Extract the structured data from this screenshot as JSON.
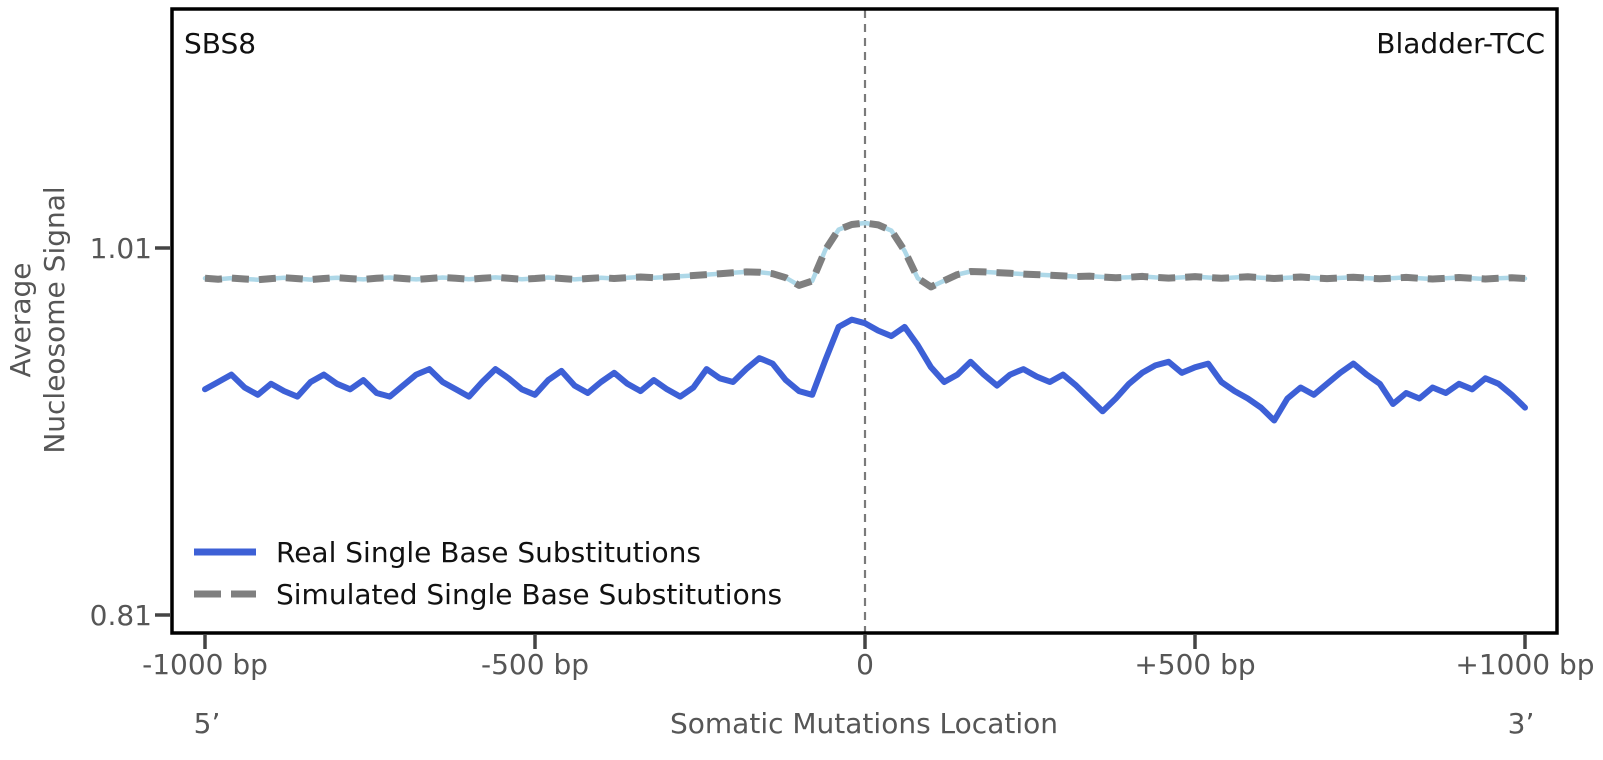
{
  "figure": {
    "kind": "nucleosome-occupancy-plot"
  },
  "chart_data": {
    "type": "line",
    "title": "SBS8",
    "right_label": "Bladder-TCC",
    "xlabel": "Somatic Mutations Location",
    "ylabel": "Average Nucleosome Signal",
    "ylabel_lines": [
      "Average",
      "Nucleosome Signal"
    ],
    "end_labels": {
      "left": "5’",
      "right": "3’"
    },
    "x_unit": "bp",
    "xticks": [
      -1000,
      -500,
      0,
      500,
      1000
    ],
    "xtick_labels": [
      "-1000 bp",
      "-500 bp",
      "0",
      "+500 bp",
      "+1000 bp"
    ],
    "yticks": [
      1.01,
      0.81
    ],
    "ytick_labels": [
      "1.01",
      "0.81"
    ],
    "xlim": [
      -1050,
      1050
    ],
    "ylim": [
      0.8,
      1.14
    ],
    "grid": false,
    "legend_position": "lower-left-inside",
    "vline_x": 0,
    "x_start": -1000,
    "x_step": 20,
    "series": [
      {
        "name": "Real Single Base Substitutions",
        "style": "solid",
        "color": "#3d60d6",
        "values": [
          0.933,
          0.937,
          0.941,
          0.934,
          0.93,
          0.936,
          0.932,
          0.929,
          0.937,
          0.941,
          0.936,
          0.933,
          0.938,
          0.931,
          0.929,
          0.935,
          0.941,
          0.944,
          0.937,
          0.933,
          0.929,
          0.937,
          0.944,
          0.939,
          0.933,
          0.93,
          0.938,
          0.943,
          0.935,
          0.931,
          0.937,
          0.942,
          0.936,
          0.932,
          0.938,
          0.933,
          0.929,
          0.934,
          0.944,
          0.939,
          0.937,
          0.944,
          0.95,
          0.947,
          0.938,
          0.932,
          0.93,
          0.949,
          0.967,
          0.971,
          0.969,
          0.965,
          0.962,
          0.967,
          0.957,
          0.945,
          0.937,
          0.941,
          0.948,
          0.941,
          0.935,
          0.941,
          0.944,
          0.94,
          0.937,
          0.941,
          0.935,
          0.928,
          0.921,
          0.928,
          0.936,
          0.942,
          0.946,
          0.948,
          0.942,
          0.945,
          0.947,
          0.937,
          0.932,
          0.928,
          0.923,
          0.916,
          0.928,
          0.934,
          0.93,
          0.936,
          0.942,
          0.947,
          0.941,
          0.936,
          0.925,
          0.931,
          0.928,
          0.934,
          0.931,
          0.936,
          0.933,
          0.939,
          0.936,
          0.93,
          0.923
        ]
      },
      {
        "name": "Simulated Single Base Substitutions",
        "style": "dashed",
        "color": "#7f7f7f",
        "underlay_color": "#aed8e8",
        "values": [
          0.9935,
          0.993,
          0.9936,
          0.9931,
          0.9927,
          0.9933,
          0.9938,
          0.9933,
          0.9928,
          0.9934,
          0.9938,
          0.9933,
          0.9929,
          0.9935,
          0.9939,
          0.9934,
          0.9929,
          0.9934,
          0.9939,
          0.9935,
          0.993,
          0.9935,
          0.994,
          0.9935,
          0.993,
          0.9934,
          0.9939,
          0.9934,
          0.9929,
          0.9934,
          0.9938,
          0.9934,
          0.9938,
          0.9942,
          0.9938,
          0.9942,
          0.9946,
          0.995,
          0.9955,
          0.996,
          0.9965,
          0.997,
          0.9968,
          0.996,
          0.9938,
          0.9896,
          0.992,
          1.009,
          1.02,
          1.0228,
          1.0236,
          1.0226,
          1.0195,
          1.0085,
          0.9935,
          0.9888,
          0.9922,
          0.9955,
          0.9972,
          0.997,
          0.9966,
          0.9962,
          0.9958,
          0.9955,
          0.9952,
          0.9948,
          0.9944,
          0.9947,
          0.9942,
          0.9938,
          0.9941,
          0.9945,
          0.994,
          0.9936,
          0.994,
          0.9944,
          0.9939,
          0.9935,
          0.9939,
          0.9943,
          0.9938,
          0.9934,
          0.9938,
          0.9942,
          0.9937,
          0.9933,
          0.9937,
          0.9941,
          0.9936,
          0.9932,
          0.9936,
          0.994,
          0.9935,
          0.9931,
          0.9935,
          0.9939,
          0.9935,
          0.9931,
          0.9935,
          0.9938,
          0.9934
        ]
      }
    ],
    "colors": {
      "real_line": "#3d60d6",
      "simulated_dash": "#7f7f7f",
      "simulated_underlay": "#aed8e8",
      "center_line": "#7a7a7a",
      "spine": "#000000",
      "tick_text": "#565656"
    }
  }
}
